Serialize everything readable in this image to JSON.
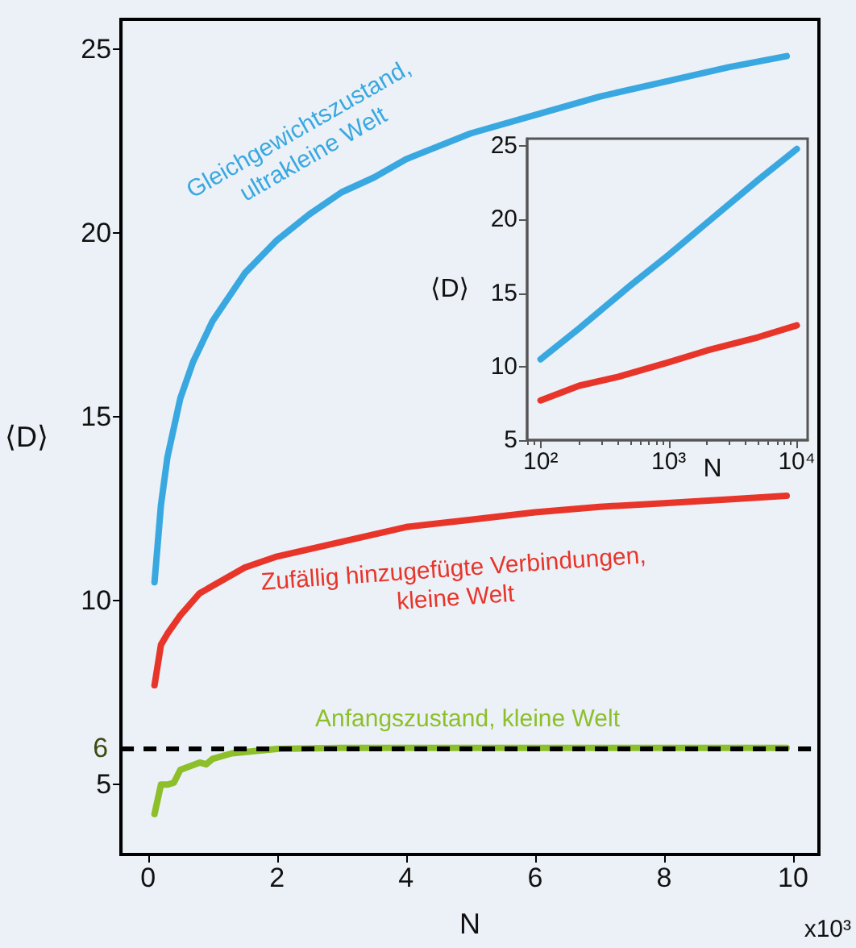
{
  "chart_data": [
    {
      "type": "line",
      "xlabel": "N",
      "ylabel": "⟨D⟩",
      "xlim": [
        -0.42,
        10.4
      ],
      "ylim": [
        3.1,
        25.8
      ],
      "xticks": [
        0,
        2,
        4,
        6,
        8,
        10
      ],
      "yticks": [
        5,
        10,
        15,
        20,
        25
      ],
      "series": [
        {
          "name": "Gleichgewichtszustand, ultrakleine Welt",
          "color": "#3aa8e0",
          "x": [
            0.1,
            0.2,
            0.3,
            0.5,
            0.7,
            1,
            1.5,
            2,
            2.5,
            3,
            3.5,
            4,
            5,
            6,
            7,
            8,
            9,
            9.9
          ],
          "values": [
            10.5,
            12.6,
            13.9,
            15.5,
            16.5,
            17.6,
            18.9,
            19.8,
            20.5,
            21.1,
            21.5,
            22.0,
            22.7,
            23.2,
            23.7,
            24.1,
            24.5,
            24.8
          ]
        },
        {
          "name": "Zufällig hinzugefügte Verbindungen, kleine Welt",
          "color": "#e8352a",
          "x": [
            0.1,
            0.2,
            0.3,
            0.5,
            0.8,
            1,
            1.5,
            2,
            3,
            4,
            5,
            6,
            7,
            8,
            9,
            9.9
          ],
          "values": [
            7.7,
            8.8,
            9.1,
            9.6,
            10.2,
            10.4,
            10.9,
            11.2,
            11.6,
            12.0,
            12.2,
            12.4,
            12.55,
            12.65,
            12.75,
            12.85
          ]
        },
        {
          "name": "Anfangszustand, kleine Welt",
          "color": "#8dbf2a",
          "x": [
            0.1,
            0.2,
            0.3,
            0.4,
            0.5,
            0.8,
            0.9,
            1,
            1.3,
            2,
            3,
            4,
            5,
            6,
            7,
            8,
            9,
            9.9
          ],
          "values": [
            4.2,
            5.0,
            5.0,
            5.05,
            5.4,
            5.6,
            5.55,
            5.7,
            5.85,
            5.97,
            6,
            6,
            6,
            6,
            6,
            6,
            6,
            6
          ]
        }
      ],
      "ref_lines": [
        {
          "axis": "y",
          "value": 6,
          "label": "6",
          "color": "#000000",
          "line_style": "dashed"
        }
      ],
      "annotations": [
        "x10³"
      ]
    },
    {
      "type": "line",
      "xlabel": "N",
      "ylabel": "⟨D⟩",
      "log": "x",
      "xlim": [
        78.5,
        12150
      ],
      "ylim": [
        5,
        25.5
      ],
      "xticks": [
        {
          "value": 100,
          "label": "10²"
        },
        {
          "value": 1000,
          "label": "10³"
        },
        {
          "value": 10000,
          "label": "10⁴"
        }
      ],
      "yticks": [
        5,
        10,
        15,
        20,
        25
      ],
      "series": [
        {
          "color": "#3aa8e0",
          "x": [
            100,
            200,
            500,
            1000,
            2000,
            5000,
            10000
          ],
          "values": [
            10.5,
            12.6,
            15.5,
            17.6,
            19.8,
            22.7,
            24.8
          ]
        },
        {
          "color": "#e8352a",
          "x": [
            100,
            200,
            400,
            1000,
            2000,
            5000,
            10000
          ],
          "values": [
            7.7,
            8.7,
            9.3,
            10.3,
            11.1,
            12.0,
            12.8
          ]
        }
      ]
    }
  ]
}
